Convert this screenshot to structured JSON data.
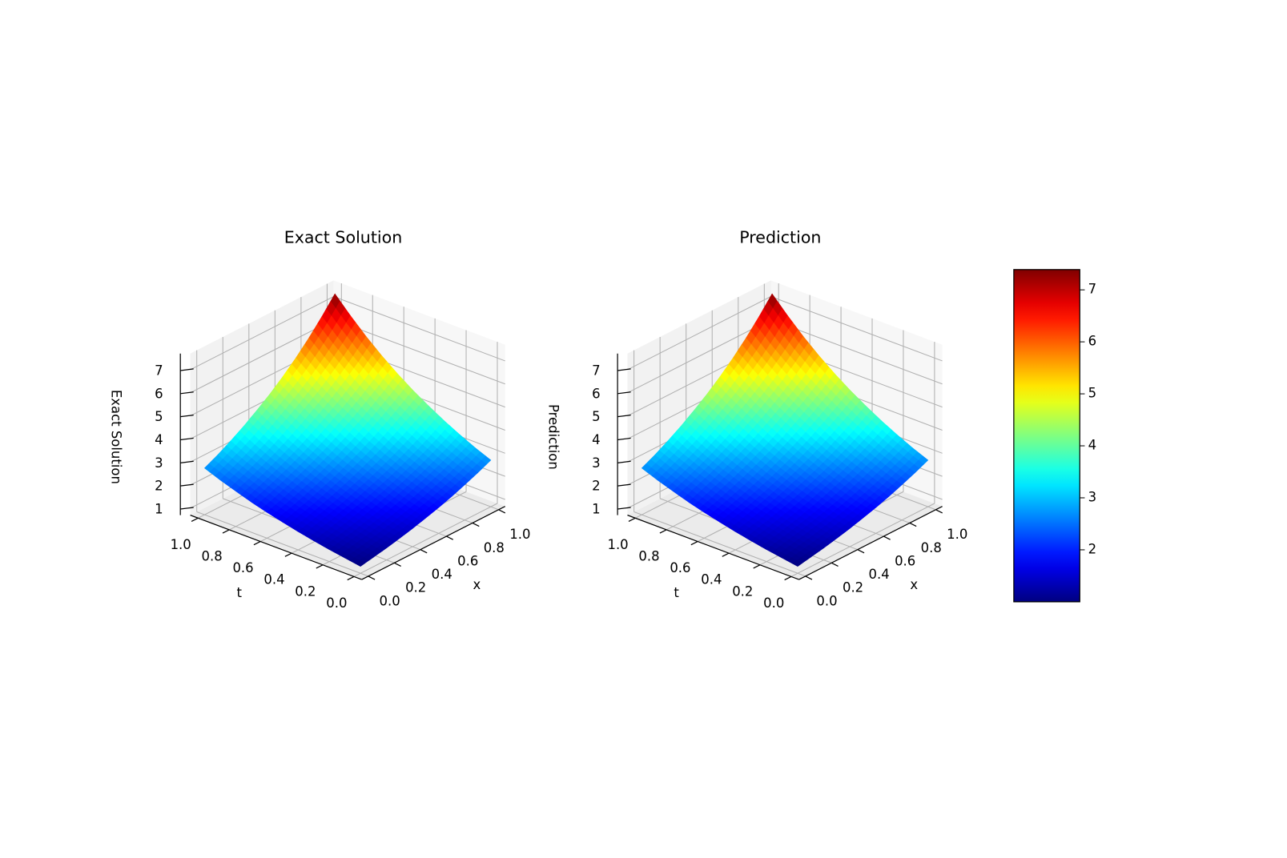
{
  "chart_data": [
    {
      "type": "surface3d",
      "title": "Exact Solution",
      "xlabel": "x",
      "ylabel": "t",
      "zlabel": "Exact Solution",
      "colormap": "jet",
      "x": [
        0,
        0.1,
        0.2,
        0.3,
        0.4,
        0.5,
        0.6,
        0.7,
        0.8,
        0.9,
        1
      ],
      "y": [
        0,
        0.1,
        0.2,
        0.3,
        0.4,
        0.5,
        0.6,
        0.7,
        0.8,
        0.9,
        1
      ],
      "z": [
        [
          1.0,
          1.11,
          1.22,
          1.35,
          1.49,
          1.65,
          1.82,
          2.01,
          2.23,
          2.46,
          2.72
        ],
        [
          1.11,
          1.22,
          1.35,
          1.49,
          1.65,
          1.82,
          2.01,
          2.23,
          2.46,
          2.72,
          3.0
        ],
        [
          1.22,
          1.35,
          1.49,
          1.65,
          1.82,
          2.01,
          2.23,
          2.46,
          2.72,
          3.0,
          3.32
        ],
        [
          1.35,
          1.49,
          1.65,
          1.82,
          2.01,
          2.23,
          2.46,
          2.72,
          3.0,
          3.32,
          3.67
        ],
        [
          1.49,
          1.65,
          1.82,
          2.01,
          2.23,
          2.46,
          2.72,
          3.0,
          3.32,
          3.67,
          4.06
        ],
        [
          1.65,
          1.82,
          2.01,
          2.23,
          2.46,
          2.72,
          3.0,
          3.32,
          3.67,
          4.06,
          4.48
        ],
        [
          1.82,
          2.01,
          2.23,
          2.46,
          2.72,
          3.0,
          3.32,
          3.67,
          4.06,
          4.48,
          4.95
        ],
        [
          2.01,
          2.23,
          2.46,
          2.72,
          3.0,
          3.32,
          3.67,
          4.06,
          4.48,
          4.95,
          5.47
        ],
        [
          2.23,
          2.46,
          2.72,
          3.0,
          3.32,
          3.67,
          4.06,
          4.48,
          4.95,
          5.47,
          6.05
        ],
        [
          2.46,
          2.72,
          3.0,
          3.32,
          3.67,
          4.06,
          4.48,
          4.95,
          5.47,
          6.05,
          6.69
        ],
        [
          2.72,
          3.0,
          3.32,
          3.67,
          4.06,
          4.48,
          4.95,
          5.47,
          6.05,
          6.69,
          7.39
        ]
      ],
      "xlim": [
        -0.05,
        1.05
      ],
      "ylim": [
        -0.05,
        1.05
      ],
      "zlim": [
        0.7,
        7.7
      ],
      "xticks": [
        {
          "value": 0,
          "label": "0.0"
        },
        0.2,
        0.4,
        0.6,
        0.8,
        {
          "value": 1,
          "label": "1.0"
        }
      ],
      "yticks": [
        {
          "value": 0,
          "label": "0.0"
        },
        0.2,
        0.4,
        0.6,
        0.8,
        {
          "value": 1,
          "label": "1.0"
        }
      ],
      "zticks": [
        1,
        2,
        3,
        4,
        5,
        6,
        7
      ],
      "grid": true
    },
    {
      "type": "surface3d",
      "title": "Prediction",
      "xlabel": "x",
      "ylabel": "t",
      "zlabel": "Prediction",
      "colormap": "jet",
      "x": [
        0,
        0.1,
        0.2,
        0.3,
        0.4,
        0.5,
        0.6,
        0.7,
        0.8,
        0.9,
        1
      ],
      "y": [
        0,
        0.1,
        0.2,
        0.3,
        0.4,
        0.5,
        0.6,
        0.7,
        0.8,
        0.9,
        1
      ],
      "z": [
        [
          1.0,
          1.11,
          1.22,
          1.35,
          1.49,
          1.65,
          1.82,
          2.01,
          2.23,
          2.46,
          2.72
        ],
        [
          1.11,
          1.22,
          1.35,
          1.49,
          1.65,
          1.82,
          2.01,
          2.23,
          2.46,
          2.72,
          3.0
        ],
        [
          1.22,
          1.35,
          1.49,
          1.65,
          1.82,
          2.01,
          2.23,
          2.46,
          2.72,
          3.0,
          3.32
        ],
        [
          1.35,
          1.49,
          1.65,
          1.82,
          2.01,
          2.23,
          2.46,
          2.72,
          3.0,
          3.32,
          3.67
        ],
        [
          1.49,
          1.65,
          1.82,
          2.01,
          2.23,
          2.46,
          2.72,
          3.0,
          3.32,
          3.67,
          4.06
        ],
        [
          1.65,
          1.82,
          2.01,
          2.23,
          2.46,
          2.72,
          3.0,
          3.32,
          3.67,
          4.06,
          4.48
        ],
        [
          1.82,
          2.01,
          2.23,
          2.46,
          2.72,
          3.0,
          3.32,
          3.67,
          4.06,
          4.48,
          4.95
        ],
        [
          2.01,
          2.23,
          2.46,
          2.72,
          3.0,
          3.32,
          3.67,
          4.06,
          4.48,
          4.95,
          5.47
        ],
        [
          2.23,
          2.46,
          2.72,
          3.0,
          3.32,
          3.67,
          4.06,
          4.48,
          4.95,
          5.47,
          6.05
        ],
        [
          2.46,
          2.72,
          3.0,
          3.32,
          3.67,
          4.06,
          4.48,
          4.95,
          5.47,
          6.05,
          6.69
        ],
        [
          2.72,
          3.0,
          3.32,
          3.67,
          4.06,
          4.48,
          4.95,
          5.47,
          6.05,
          6.69,
          7.39
        ]
      ],
      "xlim": [
        -0.05,
        1.05
      ],
      "ylim": [
        -0.05,
        1.05
      ],
      "zlim": [
        0.7,
        7.7
      ],
      "xticks": [
        {
          "value": 0,
          "label": "0.0"
        },
        0.2,
        0.4,
        0.6,
        0.8,
        {
          "value": 1,
          "label": "1.0"
        }
      ],
      "yticks": [
        {
          "value": 0,
          "label": "0.0"
        },
        0.2,
        0.4,
        0.6,
        0.8,
        {
          "value": 1,
          "label": "1.0"
        }
      ],
      "zticks": [
        1,
        2,
        3,
        4,
        5,
        6,
        7
      ],
      "grid": true
    },
    {
      "type": "colorbar",
      "colormap": "jet",
      "ylim": [
        1,
        7.39
      ],
      "yticks": [
        2,
        3,
        4,
        5,
        6,
        7
      ]
    }
  ]
}
